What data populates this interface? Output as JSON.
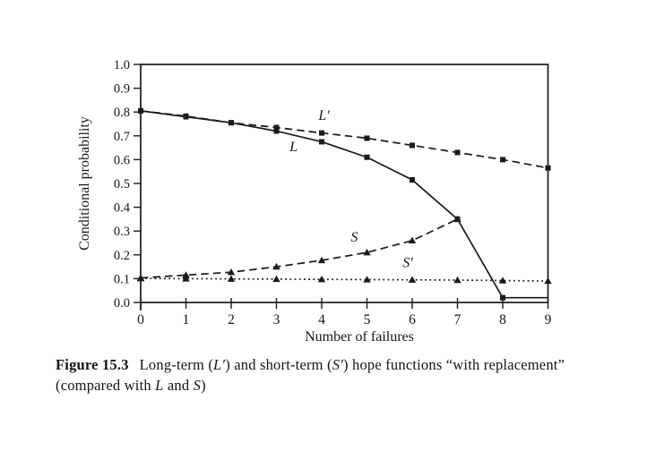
{
  "colors": {
    "ink": "#1a1a1a",
    "background": "#ffffff"
  },
  "figure": {
    "caption_label": "Figure 15.3",
    "caption_line1_parts": [
      {
        "text": "Long-term ("
      },
      {
        "text": "L′",
        "italic": true
      },
      {
        "text": ") and short-term ("
      },
      {
        "text": "S′",
        "italic": true
      },
      {
        "text": ") hope functions “with replacement”"
      }
    ],
    "caption_line2_parts": [
      {
        "text": "(compared with "
      },
      {
        "text": "L",
        "italic": true
      },
      {
        "text": " and "
      },
      {
        "text": "S",
        "italic": true
      },
      {
        "text": ")"
      }
    ]
  },
  "chart_data": {
    "type": "line",
    "title": "",
    "xlabel": "Number of failures",
    "ylabel": "Conditional probability",
    "xlim": [
      0,
      9
    ],
    "ylim": [
      0.0,
      1.0
    ],
    "grid": false,
    "legend_position": "in-plot text labels",
    "xticks": [
      "0",
      "1",
      "2",
      "3",
      "4",
      "5",
      "6",
      "7",
      "8",
      "9"
    ],
    "yticks": [
      "0.0",
      "0.1",
      "0.2",
      "0.3",
      "0.4",
      "0.5",
      "0.6",
      "0.7",
      "0.8",
      "0.9",
      "1.0"
    ],
    "series": [
      {
        "name": "L",
        "label": "L",
        "line_style": "solid",
        "marker": "square",
        "marker_last": false,
        "x": [
          0,
          1,
          2,
          3,
          4,
          5,
          6,
          7,
          8,
          9
        ],
        "values": [
          0.805,
          0.78,
          0.755,
          0.72,
          0.675,
          0.61,
          0.515,
          0.35,
          0.02,
          0.02
        ],
        "label_at": [
          3.38,
          0.655
        ]
      },
      {
        "name": "L-prime",
        "label": "L′",
        "line_style": "dashed",
        "marker": "square",
        "marker_last": true,
        "x": [
          0,
          1,
          2,
          3,
          4,
          5,
          6,
          7,
          8,
          9
        ],
        "values": [
          0.805,
          0.783,
          0.755,
          0.735,
          0.712,
          0.69,
          0.66,
          0.63,
          0.6,
          0.565
        ],
        "label_at": [
          4.05,
          0.785
        ]
      },
      {
        "name": "S",
        "label": "S",
        "line_style": "dashed",
        "marker": "triangle",
        "marker_last": true,
        "x": [
          0,
          1,
          2,
          3,
          4,
          5,
          6,
          7
        ],
        "values": [
          0.103,
          0.115,
          0.127,
          0.15,
          0.177,
          0.21,
          0.26,
          0.35
        ],
        "label_at": [
          4.72,
          0.275
        ]
      },
      {
        "name": "S-prime",
        "label": "S′",
        "line_style": "dotted",
        "marker": "triangle",
        "marker_last": true,
        "x": [
          0,
          1,
          2,
          3,
          4,
          5,
          6,
          7,
          8,
          9
        ],
        "values": [
          0.101,
          0.1,
          0.099,
          0.098,
          0.097,
          0.096,
          0.095,
          0.094,
          0.092,
          0.09
        ],
        "label_at": [
          5.9,
          0.168
        ]
      }
    ]
  }
}
